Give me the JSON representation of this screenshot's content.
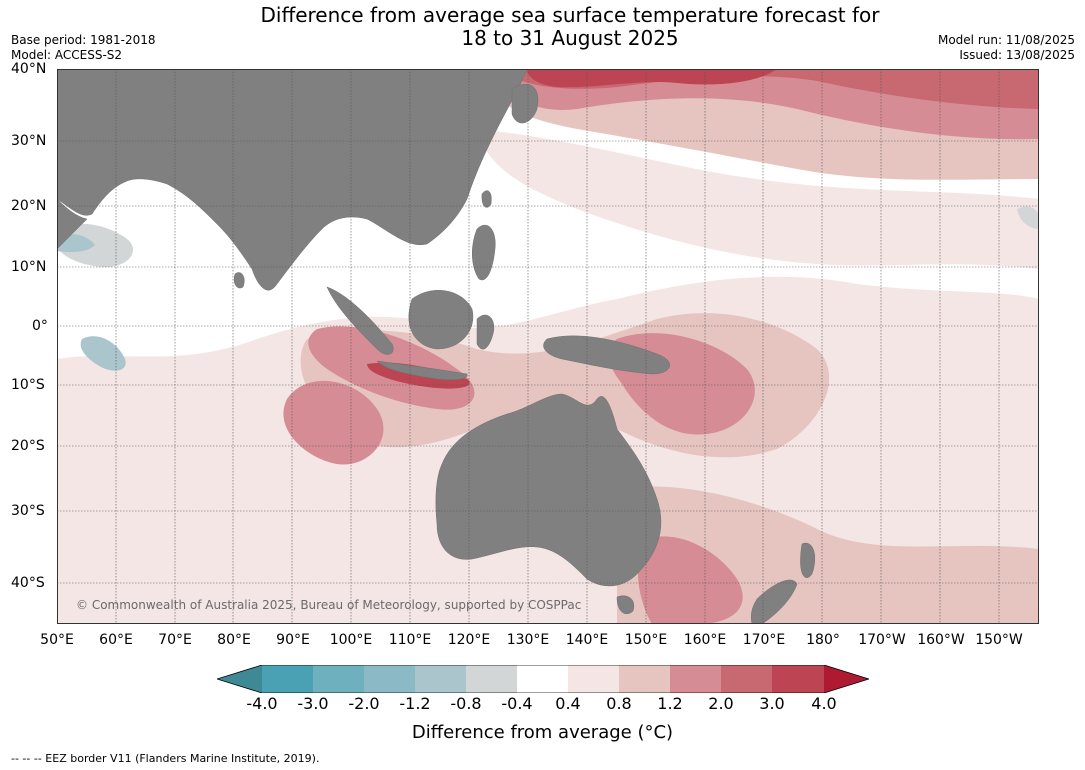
{
  "title": {
    "line1": "Difference from average sea surface temperature forecast for",
    "line2": "18 to 31 August 2025"
  },
  "meta": {
    "base_period": "Base period: 1981-2018",
    "model": "Model: ACCESS-S2",
    "model_run": "Model run: 11/08/2025",
    "issued": "Issued: 13/08/2025"
  },
  "map": {
    "lat_labels": [
      "40°N",
      "30°N",
      "20°N",
      "10°N",
      "0°",
      "10°S",
      "20°S",
      "30°S",
      "40°S"
    ],
    "lon_labels": [
      "50°E",
      "60°E",
      "70°E",
      "80°E",
      "90°E",
      "100°E",
      "110°E",
      "120°E",
      "130°E",
      "140°E",
      "150°E",
      "160°E",
      "170°E",
      "180°",
      "170°W",
      "160°W",
      "150°W"
    ],
    "copyright": "© Commonwealth of Australia 2025, Bureau of Meteorology, supported by COSPPac",
    "land_color": "#808080"
  },
  "colorbar": {
    "ticks": [
      "-4.0",
      "-3.0",
      "-2.0",
      "-1.2",
      "-0.8",
      "-0.4",
      "0.4",
      "0.8",
      "1.2",
      "2.0",
      "3.0",
      "4.0"
    ],
    "colors": [
      "#3d8a96",
      "#4aa1b3",
      "#6fb0bf",
      "#8cb9c6",
      "#aac6cc",
      "#d3d6d6",
      "#ffffff",
      "#f4e6e4",
      "#e6c5c1",
      "#d68c94",
      "#c86870",
      "#bd4452",
      "#ae1a32"
    ],
    "label": "Difference from average (°C)"
  },
  "footnote": "--  --  -- EEZ border V11 (Flanders Marine Institute, 2019)."
}
